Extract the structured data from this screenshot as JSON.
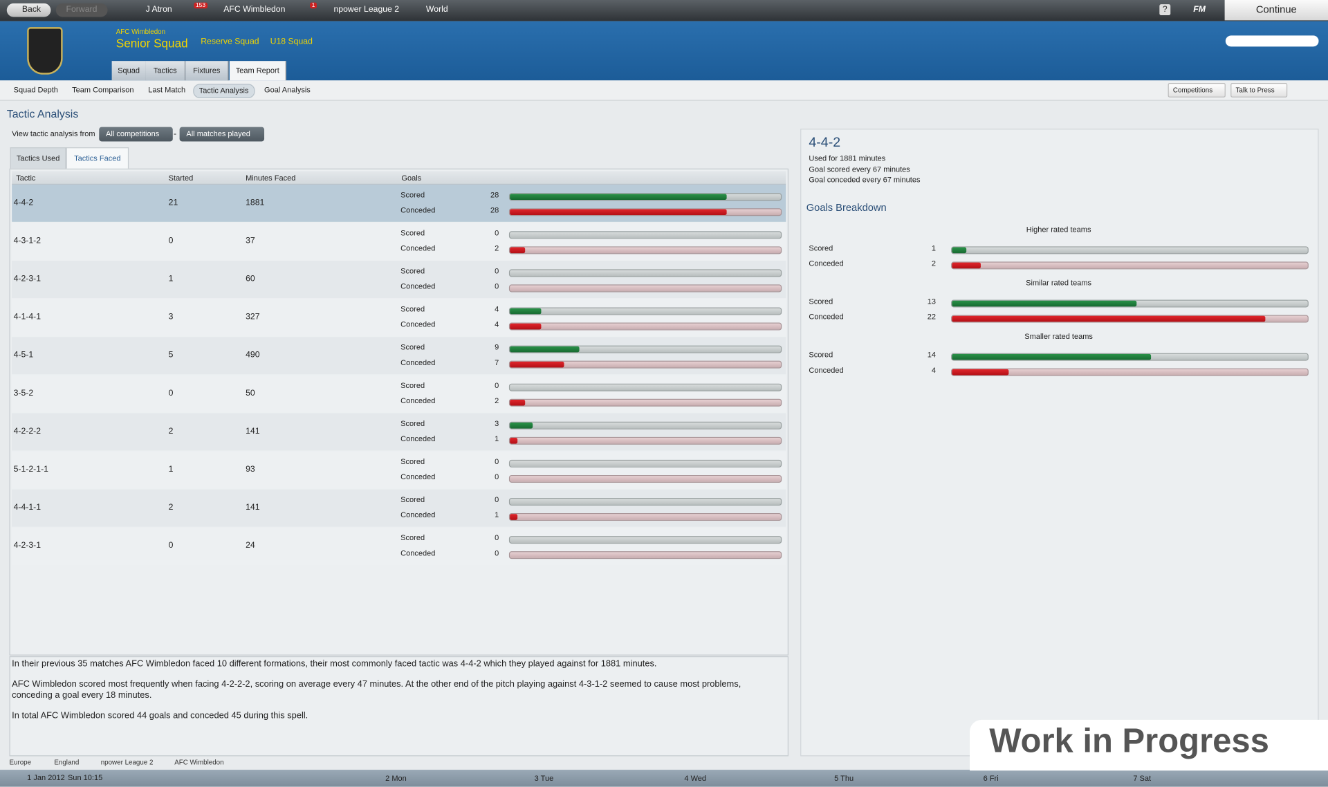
{
  "top_bar": {
    "back": "Back",
    "forward": "Forward",
    "manager": "J Atron",
    "inbox_count": "153",
    "club": "AFC Wimbledon",
    "news_count": "1",
    "league": "npower League 2",
    "world": "World",
    "help": "?",
    "fm": "FM",
    "continue": "Continue"
  },
  "header": {
    "club": "AFC Wimbledon",
    "squads": [
      "Senior Squad",
      "Reserve Squad",
      "U18 Squad"
    ],
    "tabs": [
      "Squad",
      "Tactics",
      "Fixtures",
      "Team Report"
    ]
  },
  "subnav": {
    "items": [
      "Squad Depth",
      "Team Comparison",
      "Last Match",
      "Tactic Analysis",
      "Goal Analysis"
    ],
    "right": [
      "Competitions",
      "Talk to Press"
    ]
  },
  "page_title": "Tactic Analysis",
  "filter": {
    "label": "View tactic analysis from",
    "competition": "All competitions",
    "separator": "-",
    "matches": "All matches played"
  },
  "view_tabs": [
    "Tactics Used",
    "Tactics Faced"
  ],
  "table": {
    "columns": [
      "Tactic",
      "Started",
      "Minutes Faced",
      "Goals"
    ],
    "scored_label": "Scored",
    "conceded_label": "Conceded",
    "rows": [
      {
        "tactic": "4-4-2",
        "started": 21,
        "minutes": 1881,
        "scored": 28,
        "conceded": 28
      },
      {
        "tactic": "4-3-1-2",
        "started": 0,
        "minutes": 37,
        "scored": 0,
        "conceded": 2
      },
      {
        "tactic": "4-2-3-1",
        "started": 1,
        "minutes": 60,
        "scored": 0,
        "conceded": 0
      },
      {
        "tactic": "4-1-4-1",
        "started": 3,
        "minutes": 327,
        "scored": 4,
        "conceded": 4
      },
      {
        "tactic": "4-5-1",
        "started": 5,
        "minutes": 490,
        "scored": 9,
        "conceded": 7
      },
      {
        "tactic": "3-5-2",
        "started": 0,
        "minutes": 50,
        "scored": 0,
        "conceded": 2
      },
      {
        "tactic": "4-2-2-2",
        "started": 2,
        "minutes": 141,
        "scored": 3,
        "conceded": 1
      },
      {
        "tactic": "5-1-2-1-1",
        "started": 1,
        "minutes": 93,
        "scored": 0,
        "conceded": 0
      },
      {
        "tactic": "4-4-1-1",
        "started": 2,
        "minutes": 141,
        "scored": 0,
        "conceded": 1
      },
      {
        "tactic": "4-2-3-1",
        "started": 0,
        "minutes": 24,
        "scored": 0,
        "conceded": 0
      }
    ]
  },
  "summary": [
    "In their previous 35 matches AFC Wimbledon faced 10 different formations, their most commonly faced tactic was 4-4-2 which they played against for 1881 minutes.",
    "AFC Wimbledon scored most frequently when facing 4-2-2-2, scoring on average every 47 minutes. At the other end of the pitch playing against 4-3-1-2 seemed to cause most problems, conceding a goal every 18 minutes.",
    "In total AFC Wimbledon scored 44 goals and conceded 45 during this spell."
  ],
  "detail": {
    "title": "4-4-2",
    "lines": [
      "Used for 1881 minutes",
      "Goal scored every 67 minutes",
      "Goal conceded every 67 minutes"
    ],
    "breakdown_title": "Goals Breakdown",
    "groups": [
      {
        "name": "Higher rated teams",
        "scored": 1,
        "conceded": 2
      },
      {
        "name": "Similar rated teams",
        "scored": 13,
        "conceded": 22
      },
      {
        "name": "Smaller rated teams",
        "scored": 14,
        "conceded": 4
      }
    ]
  },
  "breadcrumb": [
    "Europe",
    "England",
    "npower League 2",
    "AFC Wimbledon"
  ],
  "calendar": {
    "date": "1 Jan 2012",
    "time": "Sun 10:15",
    "days": [
      "2 Mon",
      "3 Tue",
      "4 Wed",
      "5 Thu",
      "6 Fri",
      "7 Sat"
    ]
  },
  "watermark": "Work in Progress"
}
